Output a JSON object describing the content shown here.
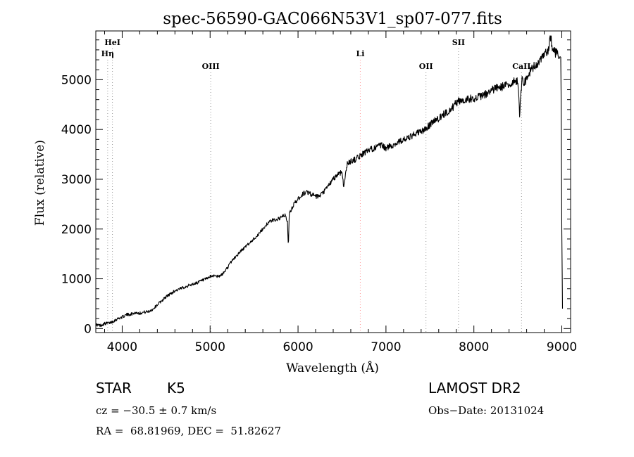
{
  "chart_data": {
    "type": "line",
    "title": "spec-56590-GAC066N53V1_sp07-077.fits",
    "xlabel": "Wavelength (Å)",
    "ylabel": "Flux (relative)",
    "xlim": [
      3700,
      9100
    ],
    "ylim": [
      -80,
      5980
    ],
    "xticks": [
      {
        "value": 4000,
        "label": "4000"
      },
      {
        "value": 5000,
        "label": "5000"
      },
      {
        "value": 6000,
        "label": "6000"
      },
      {
        "value": 7000,
        "label": "7000"
      },
      {
        "value": 8000,
        "label": "8000"
      },
      {
        "value": 9000,
        "label": "9000"
      }
    ],
    "yticks": [
      {
        "value": 0,
        "label": "0"
      },
      {
        "value": 1000,
        "label": "1000"
      },
      {
        "value": 2000,
        "label": "2000"
      },
      {
        "value": 3000,
        "label": "3000"
      },
      {
        "value": 4000,
        "label": "4000"
      },
      {
        "value": 5000,
        "label": "5000"
      }
    ],
    "grid": false,
    "line_color": "#000000",
    "series": [
      {
        "x": [
          3700,
          3750,
          3800,
          3850,
          3900,
          3950,
          4000,
          4050,
          4100,
          4150,
          4200,
          4250,
          4300,
          4350,
          4400,
          4450,
          4500,
          4550,
          4600,
          4650,
          4700,
          4750,
          4800,
          4850,
          4900,
          4950,
          5000,
          5050,
          5100,
          5150,
          5200,
          5250,
          5300,
          5350,
          5400,
          5450,
          5500,
          5550,
          5600,
          5650,
          5700,
          5750,
          5800,
          5850,
          5880,
          5890,
          5900,
          5950,
          6000,
          6050,
          6100,
          6150,
          6200,
          6250,
          6300,
          6350,
          6400,
          6450,
          6500,
          6520,
          6550,
          6560,
          6600,
          6650,
          6700,
          6750,
          6800,
          6850,
          6900,
          6950,
          7000,
          7050,
          7100,
          7150,
          7200,
          7250,
          7300,
          7350,
          7400,
          7450,
          7500,
          7550,
          7600,
          7650,
          7700,
          7750,
          7800,
          7850,
          7900,
          7950,
          8000,
          8050,
          8100,
          8150,
          8200,
          8250,
          8300,
          8350,
          8400,
          8450,
          8500,
          8520,
          8540,
          8550,
          8560,
          8600,
          8650,
          8700,
          8750,
          8800,
          8850,
          8870,
          8900,
          8950,
          8990,
          9000,
          9010
        ],
        "y": [
          80,
          60,
          100,
          110,
          150,
          200,
          230,
          280,
          290,
          320,
          310,
          330,
          340,
          390,
          480,
          560,
          640,
          700,
          760,
          790,
          830,
          860,
          890,
          920,
          960,
          990,
          1040,
          1070,
          1040,
          1110,
          1230,
          1370,
          1460,
          1560,
          1640,
          1720,
          1810,
          1890,
          2000,
          2110,
          2170,
          2190,
          2220,
          2280,
          2150,
          1600,
          2300,
          2490,
          2600,
          2700,
          2750,
          2700,
          2650,
          2660,
          2760,
          2880,
          3000,
          3100,
          3150,
          2850,
          3200,
          3320,
          3360,
          3400,
          3460,
          3530,
          3570,
          3620,
          3650,
          3680,
          3620,
          3670,
          3700,
          3760,
          3790,
          3820,
          3870,
          3930,
          3960,
          4000,
          4100,
          4180,
          4220,
          4290,
          4360,
          4420,
          4540,
          4580,
          4600,
          4620,
          4630,
          4650,
          4680,
          4720,
          4780,
          4830,
          4850,
          4870,
          4900,
          4950,
          5000,
          4300,
          4850,
          5050,
          4950,
          5000,
          5200,
          5300,
          5350,
          5500,
          5580,
          5900,
          5600,
          5500,
          5450,
          2000,
          0
        ]
      }
    ],
    "annotations": [
      {
        "label": "HeI",
        "x": 3889,
        "tier": "top",
        "color": "#999999"
      },
      {
        "label": "Hη",
        "x": 3835,
        "tier": "second",
        "color": "#999999"
      },
      {
        "label": "OIII",
        "x": 5007,
        "tier": "third",
        "color": "#999999"
      },
      {
        "label": "Li",
        "x": 6708,
        "tier": "second",
        "color": "#ff9999"
      },
      {
        "label": "OII",
        "x": 7455,
        "tier": "third",
        "color": "#999999"
      },
      {
        "label": "SII",
        "x": 7825,
        "tier": "top",
        "color": "#999999"
      },
      {
        "label": "CaII",
        "x": 8542,
        "tier": "third",
        "color": "#999999"
      }
    ]
  },
  "info": {
    "object_class": "STAR",
    "subclass": "K5",
    "survey": "LAMOST DR2",
    "redshift": "cz = −30.5 ± 0.7 km/s",
    "obs_date": "Obs−Date: 20131024",
    "coords": "RA =  68.81969, DEC =  51.82627"
  }
}
